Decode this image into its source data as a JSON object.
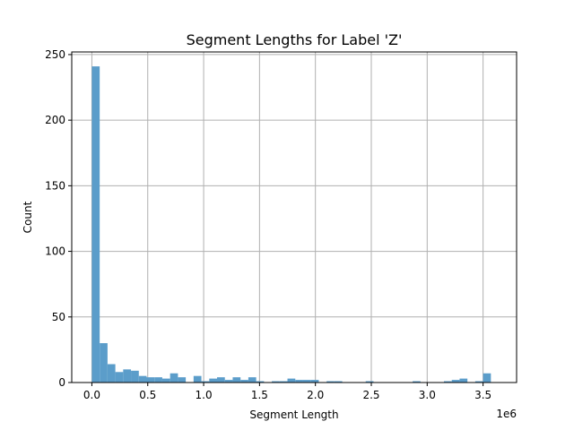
{
  "chart_data": {
    "type": "bar",
    "title": "Segment Lengths for Label 'Z'",
    "xlabel": "Segment Length",
    "ylabel": "Count",
    "x_offset_label": "1e6",
    "xlim": [
      -0.18,
      3.8
    ],
    "ylim": [
      0,
      252
    ],
    "grid": true,
    "color": "#5b9dca",
    "bin_width": 0.07,
    "bin_start": 0.0,
    "values": [
      241,
      30,
      14,
      8,
      10,
      9,
      5,
      4,
      4,
      3,
      7,
      4,
      0,
      5,
      1,
      3,
      4,
      2,
      4,
      2,
      4,
      1,
      0,
      1,
      1,
      3,
      2,
      2,
      2,
      0,
      1,
      1,
      0,
      0,
      0,
      1,
      0,
      0,
      0,
      0,
      0,
      1,
      0,
      0,
      0,
      1,
      2,
      3,
      0,
      1,
      7
    ],
    "x_ticks": [
      {
        "value": 0.0,
        "label": "0.0"
      },
      {
        "value": 0.5,
        "label": "0.5"
      },
      {
        "value": 1.0,
        "label": "1.0"
      },
      {
        "value": 1.5,
        "label": "1.5"
      },
      {
        "value": 2.0,
        "label": "2.0"
      },
      {
        "value": 2.5,
        "label": "2.5"
      },
      {
        "value": 3.0,
        "label": "3.0"
      },
      {
        "value": 3.5,
        "label": "3.5"
      }
    ],
    "y_ticks": [
      {
        "value": 0,
        "label": "0"
      },
      {
        "value": 50,
        "label": "50"
      },
      {
        "value": 100,
        "label": "100"
      },
      {
        "value": 150,
        "label": "150"
      },
      {
        "value": 200,
        "label": "200"
      },
      {
        "value": 250,
        "label": "250"
      }
    ]
  }
}
